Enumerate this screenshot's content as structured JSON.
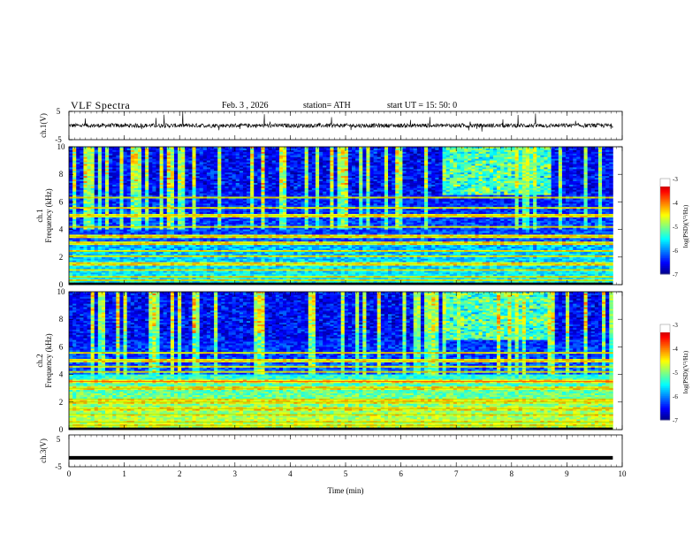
{
  "header": {
    "title": "VLF  Spectra",
    "date": "Feb. 3  , 2026",
    "station": "station= ATH",
    "start": "start  UT  =   15: 50: 0"
  },
  "chart_data": [
    {
      "type": "line",
      "title": "VLF  Spectra",
      "ylabel": "ch.1(V)",
      "xlabel": "",
      "xlim": [
        0,
        10
      ],
      "ylim": [
        -5,
        5
      ],
      "y_ticks": [
        "5",
        "-5"
      ],
      "description_values": {
        "baseline": 0,
        "noise_amplitude": 1.5,
        "spike_max": 3.5,
        "x_end": 9.83
      }
    },
    {
      "type": "heatmap",
      "ylabel": "ch.1\nFrequency  (kHz)",
      "ylabel_line1": "ch.1",
      "ylabel_line2": "Frequency  (kHz)",
      "xlim": [
        0,
        9.83
      ],
      "ylim": [
        0,
        10
      ],
      "y_ticks": [
        "0",
        "2",
        "4",
        "6",
        "8",
        "10"
      ],
      "colorbar": {
        "label": "log(PSD)(V²/Hz)",
        "range": [
          -7,
          -3
        ],
        "ticks": [
          "-3",
          "-4",
          "-5",
          "-6",
          "-7"
        ]
      },
      "bands_khz": [
        0.3,
        0.55,
        1.1,
        1.5,
        2.1,
        2.4,
        3.0,
        3.5,
        4.2,
        5.0,
        5.6,
        6.3
      ],
      "sferic_density": 0.3
    },
    {
      "type": "heatmap",
      "ylabel": "ch.2\nFrequency  (kHz)",
      "ylabel_line1": "ch.2",
      "ylabel_line2": "Frequency  (kHz)",
      "xlim": [
        0,
        9.83
      ],
      "ylim": [
        0,
        10
      ],
      "y_ticks": [
        "0",
        "2",
        "4",
        "6",
        "8",
        "10"
      ],
      "colorbar": {
        "label": "log(PSD)(V²/Hz)",
        "range": [
          -7,
          -3
        ],
        "ticks": [
          "-3",
          "-4",
          "-5",
          "-6",
          "-7"
        ]
      },
      "bands_khz": [
        0.3,
        0.55,
        1.1,
        1.5,
        2.0,
        2.2,
        3.0,
        3.5,
        4.2,
        4.6,
        5.0,
        5.6
      ],
      "sferic_density": 0.3
    },
    {
      "type": "line",
      "ylabel": "ch.3(V)",
      "xlabel": "Time  (min)",
      "xlim": [
        0,
        10
      ],
      "ylim": [
        -5,
        5
      ],
      "x_ticks": [
        "0",
        "1",
        "2",
        "3",
        "4",
        "5",
        "6",
        "7",
        "8",
        "9",
        "10"
      ],
      "y_ticks": [
        "5",
        "-5"
      ],
      "description_values": {
        "level": -2.2,
        "x_end": 9.83
      }
    }
  ]
}
